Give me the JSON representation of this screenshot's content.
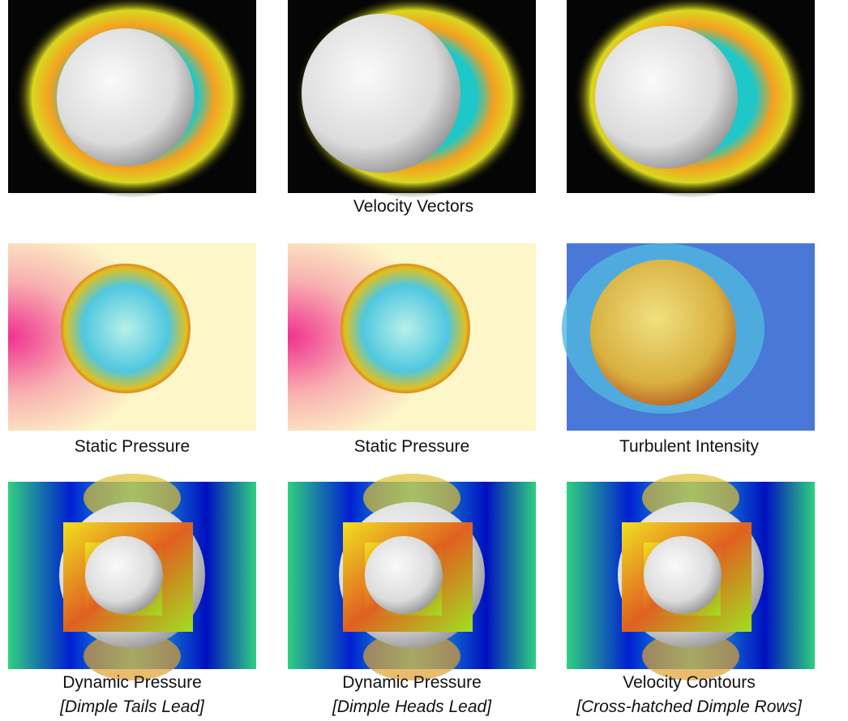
{
  "row1": {
    "caption": "Velocity Vectors"
  },
  "row2": {
    "captions": [
      "Static Pressure",
      "Static Pressure",
      "Turbulent Intensity"
    ]
  },
  "row3": {
    "captions": [
      {
        "title": "Dynamic Pressure",
        "note": "[Dimple Tails Lead]"
      },
      {
        "title": "Dynamic Pressure",
        "note": "[Dimple Heads Lead]"
      },
      {
        "title": "Velocity Contours",
        "note": "[Cross-hatched Dimple Rows]"
      }
    ]
  }
}
